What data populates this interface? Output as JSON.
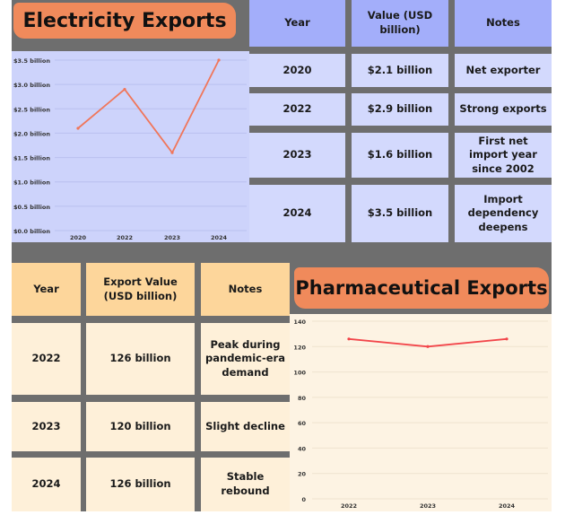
{
  "electricity": {
    "title": "Electricity Exports",
    "table": {
      "headers": [
        "Year",
        "Value (USD billion)",
        "Notes"
      ],
      "rows": [
        [
          "2020",
          "$2.1 billion",
          "Net exporter"
        ],
        [
          "2022",
          "$2.9 billion",
          "Strong exports"
        ],
        [
          "2023",
          "$1.6 billion",
          "First net import year since 2002"
        ],
        [
          "2024",
          "$3.5 billion",
          "Import dependency deepens"
        ]
      ]
    }
  },
  "pharma": {
    "title": "Pharmaceutical Exports",
    "table": {
      "headers": [
        "Year",
        "Export Value (USD billion)",
        "Notes"
      ],
      "rows": [
        [
          "2022",
          "126 billion",
          "Peak during pandemic-era demand"
        ],
        [
          "2023",
          "120 billion",
          "Slight decline"
        ],
        [
          "2024",
          "126 billion",
          "Stable rebound"
        ]
      ]
    }
  },
  "chart_data": [
    {
      "type": "line",
      "title": "Electricity Exports",
      "categories": [
        "2020",
        "2022",
        "2023",
        "2024"
      ],
      "values": [
        2.1,
        2.9,
        1.6,
        3.5
      ],
      "ylim": [
        0,
        3.5
      ],
      "yticks": [
        "$0.0 billion",
        "$0.5 billion",
        "$1.0 billion",
        "$1.5 billion",
        "$2.0 billion",
        "$2.5 billion",
        "$3.0 billion",
        "$3.5 billion"
      ],
      "grid": true,
      "line_color": "#f0765a"
    },
    {
      "type": "line",
      "title": "Pharmaceutical Exports",
      "categories": [
        "2022",
        "2023",
        "2024"
      ],
      "values": [
        126,
        120,
        126
      ],
      "ylim": [
        0,
        140
      ],
      "yticks": [
        "0",
        "20",
        "40",
        "60",
        "80",
        "100",
        "120",
        "140"
      ],
      "grid": true,
      "line_color": "#f2454a"
    }
  ]
}
